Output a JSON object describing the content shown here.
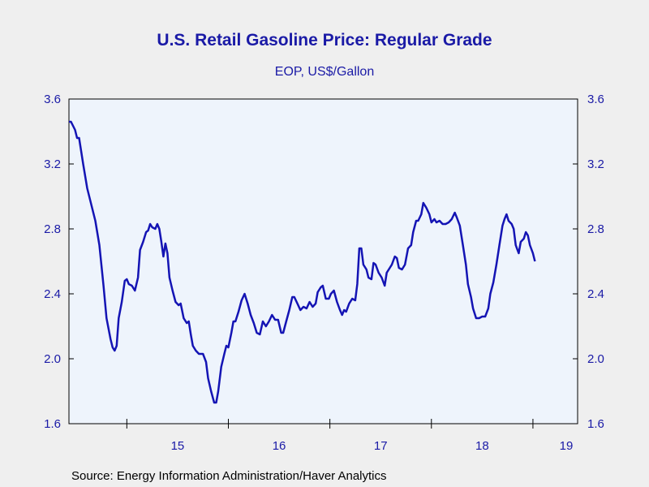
{
  "title": "U.S. Retail Gasoline Price: Regular Grade",
  "subtitle": "EOP, US$/Gallon",
  "source": "Source:  Energy Information Administration/Haver Analytics",
  "colors": {
    "line": "#1414b4",
    "plot_background": "#eef4fc",
    "page_background": "#efefef",
    "axis_text": "#1a1aa6"
  },
  "chart_data": {
    "type": "line",
    "title": "U.S. Retail Gasoline Price: Regular Grade",
    "subtitle": "EOP, US$/Gallon",
    "xlabel": "",
    "ylabel": "",
    "ylim": [
      1.6,
      3.6
    ],
    "xlim": [
      2014.43,
      2019.44
    ],
    "yticks": [
      1.6,
      2.0,
      2.4,
      2.8,
      3.2,
      3.6
    ],
    "ytick_labels": [
      "1.6",
      "2.0",
      "2.4",
      "2.8",
      "3.2",
      "3.6"
    ],
    "xtick_labels": [
      {
        "label": "15",
        "x": 2015.5
      },
      {
        "label": "16",
        "x": 2016.5
      },
      {
        "label": "17",
        "x": 2017.5
      },
      {
        "label": "18",
        "x": 2018.5
      },
      {
        "label": "19",
        "x": 2019.5
      }
    ],
    "x_year_boundaries": [
      2015,
      2016,
      2017,
      2018,
      2019
    ],
    "grid": false,
    "legend": "none",
    "series": [
      {
        "values": [
          [
            2014.43,
            3.46
          ],
          [
            2014.45,
            3.46
          ],
          [
            2014.49,
            3.41
          ],
          [
            2014.51,
            3.36
          ],
          [
            2014.53,
            3.36
          ],
          [
            2014.57,
            3.2
          ],
          [
            2014.61,
            3.05
          ],
          [
            2014.65,
            2.95
          ],
          [
            2014.69,
            2.85
          ],
          [
            2014.73,
            2.7
          ],
          [
            2014.77,
            2.45
          ],
          [
            2014.8,
            2.25
          ],
          [
            2014.84,
            2.12
          ],
          [
            2014.86,
            2.07
          ],
          [
            2014.88,
            2.05
          ],
          [
            2014.9,
            2.08
          ],
          [
            2014.92,
            2.25
          ],
          [
            2014.95,
            2.35
          ],
          [
            2014.98,
            2.48
          ],
          [
            2015.0,
            2.49
          ],
          [
            2015.02,
            2.46
          ],
          [
            2015.05,
            2.45
          ],
          [
            2015.08,
            2.42
          ],
          [
            2015.11,
            2.5
          ],
          [
            2015.13,
            2.67
          ],
          [
            2015.16,
            2.72
          ],
          [
            2015.19,
            2.78
          ],
          [
            2015.21,
            2.79
          ],
          [
            2015.23,
            2.83
          ],
          [
            2015.25,
            2.81
          ],
          [
            2015.28,
            2.8
          ],
          [
            2015.3,
            2.83
          ],
          [
            2015.32,
            2.8
          ],
          [
            2015.34,
            2.72
          ],
          [
            2015.36,
            2.63
          ],
          [
            2015.38,
            2.71
          ],
          [
            2015.4,
            2.65
          ],
          [
            2015.42,
            2.5
          ],
          [
            2015.45,
            2.42
          ],
          [
            2015.48,
            2.35
          ],
          [
            2015.51,
            2.33
          ],
          [
            2015.53,
            2.34
          ],
          [
            2015.56,
            2.25
          ],
          [
            2015.59,
            2.22
          ],
          [
            2015.61,
            2.23
          ],
          [
            2015.63,
            2.15
          ],
          [
            2015.65,
            2.08
          ],
          [
            2015.68,
            2.05
          ],
          [
            2015.71,
            2.03
          ],
          [
            2015.73,
            2.03
          ],
          [
            2015.75,
            2.03
          ],
          [
            2015.78,
            1.98
          ],
          [
            2015.8,
            1.88
          ],
          [
            2015.83,
            1.8
          ],
          [
            2015.86,
            1.73
          ],
          [
            2015.88,
            1.73
          ],
          [
            2015.9,
            1.8
          ],
          [
            2015.93,
            1.95
          ],
          [
            2015.96,
            2.03
          ],
          [
            2015.98,
            2.08
          ],
          [
            2016.0,
            2.07
          ],
          [
            2016.03,
            2.16
          ],
          [
            2016.05,
            2.23
          ],
          [
            2016.07,
            2.23
          ],
          [
            2016.1,
            2.29
          ],
          [
            2016.13,
            2.36
          ],
          [
            2016.16,
            2.4
          ],
          [
            2016.19,
            2.34
          ],
          [
            2016.22,
            2.27
          ],
          [
            2016.25,
            2.22
          ],
          [
            2016.28,
            2.16
          ],
          [
            2016.31,
            2.15
          ],
          [
            2016.34,
            2.23
          ],
          [
            2016.37,
            2.2
          ],
          [
            2016.4,
            2.23
          ],
          [
            2016.43,
            2.27
          ],
          [
            2016.46,
            2.24
          ],
          [
            2016.49,
            2.24
          ],
          [
            2016.52,
            2.16
          ],
          [
            2016.54,
            2.16
          ],
          [
            2016.57,
            2.23
          ],
          [
            2016.6,
            2.3
          ],
          [
            2016.63,
            2.38
          ],
          [
            2016.65,
            2.38
          ],
          [
            2016.68,
            2.34
          ],
          [
            2016.71,
            2.3
          ],
          [
            2016.74,
            2.32
          ],
          [
            2016.77,
            2.31
          ],
          [
            2016.8,
            2.35
          ],
          [
            2016.83,
            2.32
          ],
          [
            2016.86,
            2.34
          ],
          [
            2016.88,
            2.41
          ],
          [
            2016.91,
            2.44
          ],
          [
            2016.93,
            2.45
          ],
          [
            2016.96,
            2.37
          ],
          [
            2016.99,
            2.37
          ],
          [
            2017.01,
            2.4
          ],
          [
            2017.04,
            2.42
          ],
          [
            2017.07,
            2.35
          ],
          [
            2017.1,
            2.3
          ],
          [
            2017.12,
            2.27
          ],
          [
            2017.14,
            2.3
          ],
          [
            2017.16,
            2.29
          ],
          [
            2017.19,
            2.34
          ],
          [
            2017.22,
            2.37
          ],
          [
            2017.25,
            2.36
          ],
          [
            2017.27,
            2.46
          ],
          [
            2017.29,
            2.68
          ],
          [
            2017.31,
            2.68
          ],
          [
            2017.33,
            2.58
          ],
          [
            2017.36,
            2.55
          ],
          [
            2017.38,
            2.5
          ],
          [
            2017.41,
            2.49
          ],
          [
            2017.43,
            2.59
          ],
          [
            2017.45,
            2.58
          ],
          [
            2017.48,
            2.53
          ],
          [
            2017.51,
            2.5
          ],
          [
            2017.54,
            2.45
          ],
          [
            2017.56,
            2.53
          ],
          [
            2017.59,
            2.56
          ],
          [
            2017.61,
            2.58
          ],
          [
            2017.64,
            2.63
          ],
          [
            2017.66,
            2.62
          ],
          [
            2017.68,
            2.56
          ],
          [
            2017.71,
            2.55
          ],
          [
            2017.74,
            2.58
          ],
          [
            2017.77,
            2.68
          ],
          [
            2017.8,
            2.7
          ],
          [
            2017.82,
            2.78
          ],
          [
            2017.85,
            2.85
          ],
          [
            2017.87,
            2.85
          ],
          [
            2017.9,
            2.89
          ],
          [
            2017.92,
            2.96
          ],
          [
            2017.95,
            2.93
          ],
          [
            2017.98,
            2.89
          ],
          [
            2018.0,
            2.84
          ],
          [
            2018.03,
            2.86
          ],
          [
            2018.05,
            2.84
          ],
          [
            2018.08,
            2.85
          ],
          [
            2018.11,
            2.83
          ],
          [
            2018.14,
            2.83
          ],
          [
            2018.17,
            2.84
          ],
          [
            2018.2,
            2.86
          ],
          [
            2018.23,
            2.9
          ],
          [
            2018.25,
            2.87
          ],
          [
            2018.28,
            2.82
          ],
          [
            2018.31,
            2.7
          ],
          [
            2018.34,
            2.58
          ],
          [
            2018.36,
            2.46
          ],
          [
            2018.39,
            2.38
          ],
          [
            2018.41,
            2.31
          ],
          [
            2018.44,
            2.25
          ],
          [
            2018.47,
            2.25
          ],
          [
            2018.5,
            2.26
          ],
          [
            2018.53,
            2.26
          ],
          [
            2018.56,
            2.31
          ],
          [
            2018.58,
            2.4
          ],
          [
            2018.61,
            2.47
          ],
          [
            2018.64,
            2.58
          ],
          [
            2018.67,
            2.7
          ],
          [
            2018.7,
            2.82
          ],
          [
            2018.72,
            2.86
          ],
          [
            2018.74,
            2.89
          ],
          [
            2018.76,
            2.85
          ],
          [
            2018.79,
            2.83
          ],
          [
            2018.81,
            2.8
          ],
          [
            2018.83,
            2.7
          ],
          [
            2018.86,
            2.65
          ],
          [
            2018.88,
            2.72
          ],
          [
            2018.91,
            2.74
          ],
          [
            2018.93,
            2.78
          ],
          [
            2018.95,
            2.76
          ],
          [
            2018.97,
            2.7
          ],
          [
            2019.0,
            2.65
          ],
          [
            2019.02,
            2.6
          ]
        ]
      }
    ]
  }
}
